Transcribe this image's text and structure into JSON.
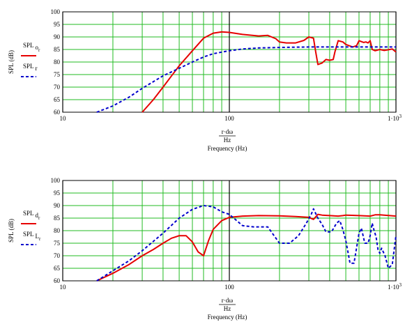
{
  "chart_data": [
    {
      "type": "line",
      "title": "",
      "xscale": "log",
      "xlim": [
        10,
        1000
      ],
      "ylim": [
        60,
        100
      ],
      "yticks": [
        60,
        65,
        70,
        75,
        80,
        85,
        90,
        95,
        100
      ],
      "xtick_labels": [
        "10",
        "100",
        "1·10"
      ],
      "xtick_exp": "3",
      "ylabel": "SPL (dB)",
      "xlabel_num": "r·dω",
      "xlabel_den": "Hz",
      "xlabel_caption": "Frequency (Hz)",
      "grid": true,
      "legend_position": "left",
      "series": [
        {
          "name_main": "SPL",
          "name_sub": "o",
          "name_subsub": "r",
          "color": "#e60000",
          "style": "solid",
          "x": [
            30,
            35,
            40,
            45,
            50,
            60,
            70,
            80,
            90,
            100,
            120,
            150,
            170,
            190,
            200,
            220,
            250,
            280,
            300,
            320,
            330,
            340,
            360,
            380,
            400,
            420,
            430,
            450,
            480,
            500,
            550,
            580,
            600,
            640,
            660,
            680,
            700,
            720,
            750,
            800,
            850,
            900,
            950,
            1000
          ],
          "y": [
            60,
            65,
            70,
            74.5,
            78.5,
            84.5,
            89.5,
            91.5,
            92,
            91.8,
            91,
            90.4,
            90.6,
            89.3,
            88,
            87.6,
            87.6,
            88.6,
            90,
            89.5,
            84,
            79,
            79.6,
            81,
            80.7,
            81,
            84,
            88.5,
            88,
            87,
            86,
            86.5,
            88.5,
            87.8,
            88,
            87.6,
            88.5,
            85,
            84.5,
            85,
            84.6,
            84.9,
            85.2,
            84
          ]
        },
        {
          "name_main": "SPL",
          "name_sub": "r",
          "name_subsub": "",
          "color": "#0000cc",
          "style": "dashed",
          "x": [
            16,
            20,
            25,
            30,
            40,
            50,
            60,
            70,
            80,
            100,
            120,
            150,
            200,
            300,
            400,
            500,
            600,
            700,
            800,
            1000
          ],
          "y": [
            60,
            62.5,
            66,
            69.5,
            74.5,
            77.5,
            80,
            82,
            83.3,
            84.5,
            85.2,
            85.6,
            85.8,
            86,
            86,
            86,
            86,
            86,
            86,
            86
          ]
        }
      ]
    },
    {
      "type": "line",
      "title": "",
      "xscale": "log",
      "xlim": [
        10,
        1000
      ],
      "ylim": [
        60,
        100
      ],
      "yticks": [
        60,
        65,
        70,
        75,
        80,
        85,
        90,
        95,
        100
      ],
      "xtick_labels": [
        "10",
        "100",
        "1·10"
      ],
      "xtick_exp": "3",
      "ylabel": "SPL (dB)",
      "xlabel_num": "r·dω",
      "xlabel_den": "Hz",
      "xlabel_caption": "Frequency (Hz)",
      "grid": true,
      "legend_position": "left",
      "series": [
        {
          "name_main": "SPL",
          "name_sub": "d",
          "name_subsub": "r",
          "color": "#e60000",
          "style": "solid",
          "x": [
            16,
            20,
            25,
            30,
            35,
            40,
            45,
            50,
            55,
            60,
            65,
            70,
            75,
            80,
            90,
            100,
            120,
            150,
            200,
            250,
            300,
            320,
            340,
            360,
            400,
            450,
            480,
            500,
            600,
            700,
            750,
            800,
            1000
          ],
          "y": [
            60,
            63,
            66.5,
            70,
            72.5,
            75,
            77,
            78,
            78,
            75.5,
            71.5,
            70,
            76,
            80.5,
            84,
            85.3,
            85.8,
            86,
            85.9,
            85.6,
            85.3,
            84.5,
            86.5,
            86.2,
            86,
            85.8,
            86,
            86.2,
            86,
            85.8,
            86.3,
            86.3,
            85.8
          ]
        },
        {
          "name_main": "SPL",
          "name_sub": "L",
          "name_subsub": "r",
          "color": "#0000cc",
          "style": "dashed",
          "x": [
            16,
            20,
            25,
            30,
            40,
            50,
            60,
            70,
            80,
            90,
            100,
            120,
            140,
            170,
            200,
            230,
            260,
            290,
            310,
            320,
            340,
            360,
            380,
            410,
            440,
            460,
            480,
            500,
            530,
            560,
            600,
            620,
            650,
            680,
            700,
            720,
            740,
            760,
            780,
            800,
            820,
            860,
            900,
            950,
            1000
          ],
          "y": [
            60,
            64,
            68,
            72,
            79,
            85,
            88.5,
            90,
            89.5,
            87.5,
            86.5,
            82,
            81.5,
            81.5,
            75,
            75,
            78,
            83,
            86.5,
            88.7,
            85,
            82.5,
            79.5,
            79.5,
            83,
            84,
            80.5,
            76,
            67,
            67,
            79,
            81,
            75,
            75,
            78,
            83,
            80,
            77.5,
            72.5,
            71,
            73,
            70,
            65,
            66.5,
            78
          ]
        }
      ]
    }
  ]
}
